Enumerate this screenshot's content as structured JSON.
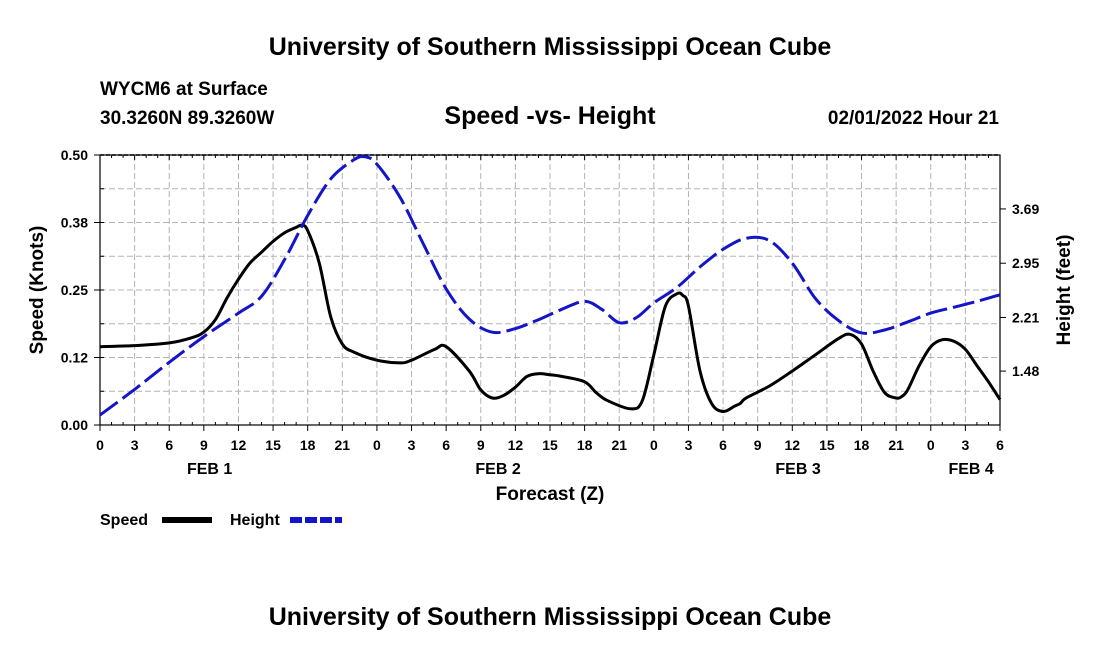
{
  "page": {
    "header_title": "University of Southern Mississippi Ocean Cube",
    "footer_title": "University of Southern Mississippi Ocean Cube",
    "station": "WYCM6 at Surface",
    "coords": "30.3260N  89.3260W",
    "datetime": "02/01/2022 Hour 21"
  },
  "chart_data": {
    "type": "line",
    "title": "Speed -vs- Height",
    "xlabel": "Forecast (Z)",
    "ylabel": "Speed (Knots)",
    "y2label": "Height (feet)",
    "xlim": [
      0,
      78
    ],
    "ylim": [
      0,
      0.5
    ],
    "y2lim": [
      0.745,
      4.425
    ],
    "x_ticks": [
      0,
      3,
      6,
      9,
      12,
      15,
      18,
      21,
      24,
      27,
      30,
      33,
      36,
      39,
      42,
      45,
      48,
      51,
      54,
      57,
      60,
      63,
      66,
      69,
      72,
      75,
      78
    ],
    "x_tick_labels": [
      "0",
      "3",
      "6",
      "9",
      "12",
      "15",
      "18",
      "21",
      "0",
      "3",
      "6",
      "9",
      "12",
      "15",
      "18",
      "21",
      "0",
      "3",
      "6",
      "9",
      "12",
      "15",
      "18",
      "21",
      "0",
      "3",
      "6"
    ],
    "y_ticks": [
      0,
      0.125,
      0.25,
      0.375,
      0.5
    ],
    "y_tick_labels": [
      "0.00",
      "0.12",
      "0.25",
      "0.38",
      "0.50"
    ],
    "y2_ticks": [
      1.48,
      2.21,
      2.95,
      3.69
    ],
    "y2_tick_labels": [
      "1.48",
      "2.21",
      "2.95",
      "3.69"
    ],
    "day_labels": [
      {
        "label": "FEB 1",
        "x": 9.5
      },
      {
        "label": "FEB 2",
        "x": 34.5
      },
      {
        "label": "FEB 3",
        "x": 60.5
      },
      {
        "label": "FEB 4",
        "x": 75.5
      }
    ],
    "grid": true,
    "series": [
      {
        "name": "Speed",
        "axis": "left",
        "color": "#000000",
        "style": "solid",
        "x": [
          0,
          3,
          6,
          8,
          9,
          10,
          11,
          12,
          13,
          14,
          15,
          16,
          17,
          17.5,
          18,
          19,
          20,
          21,
          22,
          24,
          26,
          27,
          29,
          30,
          32,
          33,
          34,
          35,
          36,
          37,
          38,
          39,
          40,
          42,
          43,
          44,
          46,
          47,
          48,
          49,
          50,
          50.5,
          51,
          52,
          53,
          54,
          55,
          55.5,
          56,
          58,
          60,
          62,
          64,
          65,
          66,
          67,
          68,
          69,
          69.5,
          70,
          71,
          72,
          73,
          74,
          75,
          76,
          77,
          78
        ],
        "y": [
          0.145,
          0.147,
          0.152,
          0.162,
          0.172,
          0.195,
          0.235,
          0.27,
          0.3,
          0.32,
          0.34,
          0.356,
          0.366,
          0.37,
          0.36,
          0.3,
          0.2,
          0.15,
          0.135,
          0.12,
          0.115,
          0.12,
          0.14,
          0.145,
          0.1,
          0.065,
          0.05,
          0.055,
          0.07,
          0.09,
          0.095,
          0.093,
          0.09,
          0.08,
          0.06,
          0.045,
          0.03,
          0.045,
          0.13,
          0.22,
          0.243,
          0.24,
          0.22,
          0.1,
          0.04,
          0.025,
          0.035,
          0.04,
          0.05,
          0.072,
          0.1,
          0.13,
          0.16,
          0.168,
          0.15,
          0.1,
          0.06,
          0.05,
          0.053,
          0.065,
          0.11,
          0.145,
          0.158,
          0.155,
          0.14,
          0.11,
          0.08,
          0.047
        ]
      },
      {
        "name": "Height",
        "axis": "right",
        "color": "#1515c8",
        "style": "dashed",
        "x": [
          0,
          3,
          6,
          9,
          12,
          14,
          16,
          18,
          20,
          22,
          23,
          24,
          26,
          28,
          30,
          32,
          34,
          36,
          38,
          40,
          42,
          43.5,
          45,
          46.5,
          48,
          50,
          52,
          54,
          56,
          58,
          60,
          62,
          64,
          66,
          68,
          70,
          72,
          74,
          76,
          78
        ],
        "y": [
          0.88,
          1.23,
          1.6,
          1.95,
          2.27,
          2.5,
          3.0,
          3.6,
          4.1,
          4.36,
          4.4,
          4.3,
          3.85,
          3.22,
          2.6,
          2.19,
          2.01,
          2.06,
          2.18,
          2.32,
          2.43,
          2.32,
          2.14,
          2.21,
          2.41,
          2.62,
          2.9,
          3.14,
          3.29,
          3.26,
          2.95,
          2.47,
          2.17,
          2.0,
          2.04,
          2.15,
          2.27,
          2.35,
          2.43,
          2.52
        ]
      }
    ]
  },
  "legend": {
    "speed_label": "Speed",
    "height_label": "Height"
  }
}
